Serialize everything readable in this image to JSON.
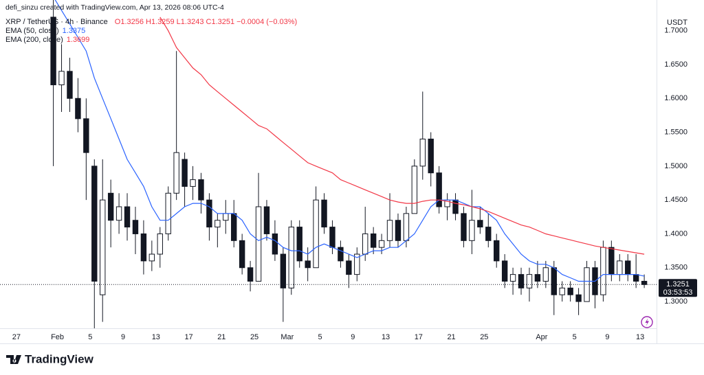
{
  "chart_data": {
    "type": "candlestick",
    "attribution": "defi_sinzu created with TradingView.com, Apr 13, 2026 08:06 UTC-4",
    "symbol": "XRP / TetherUS · 4h · Binance",
    "ohlc_readout": "O1.3256  H1.3259  L1.3243  C1.3251  −0.0004 (−0.03%)",
    "currency": "USDT",
    "countdown": "03:53:53",
    "brand": "TradingView",
    "up_color": "#ffffff",
    "down_color": "#131722",
    "wick_color": "#131722",
    "x": [
      "2026-01-31",
      "2026-02-01",
      "2026-02-02",
      "2026-02-03",
      "2026-02-04",
      "2026-02-05",
      "2026-02-06",
      "2026-02-07",
      "2026-02-08",
      "2026-02-09",
      "2026-02-10",
      "2026-02-11",
      "2026-02-12",
      "2026-02-13",
      "2026-02-14",
      "2026-02-15",
      "2026-02-16",
      "2026-02-17",
      "2026-02-18",
      "2026-02-19",
      "2026-02-20",
      "2026-02-21",
      "2026-02-22",
      "2026-02-23",
      "2026-02-24",
      "2026-02-25",
      "2026-02-26",
      "2026-02-27",
      "2026-02-28",
      "2026-03-01",
      "2026-03-02",
      "2026-03-03",
      "2026-03-04",
      "2026-03-05",
      "2026-03-06",
      "2026-03-07",
      "2026-03-08",
      "2026-03-09",
      "2026-03-10",
      "2026-03-11",
      "2026-03-12",
      "2026-03-13",
      "2026-03-14",
      "2026-03-15",
      "2026-03-16",
      "2026-03-17",
      "2026-03-18",
      "2026-03-19",
      "2026-03-20",
      "2026-03-21",
      "2026-03-22",
      "2026-03-23",
      "2026-03-24",
      "2026-03-25",
      "2026-03-26",
      "2026-03-27",
      "2026-03-28",
      "2026-03-29",
      "2026-03-30",
      "2026-03-31",
      "2026-04-01",
      "2026-04-02",
      "2026-04-03",
      "2026-04-04",
      "2026-04-05",
      "2026-04-06",
      "2026-04-07",
      "2026-04-08",
      "2026-04-09",
      "2026-04-10",
      "2026-04-11",
      "2026-04-12",
      "2026-04-13"
    ],
    "open": [
      1.72,
      1.62,
      1.64,
      1.6,
      1.57,
      1.5,
      1.31,
      1.46,
      1.42,
      1.44,
      1.42,
      1.4,
      1.36,
      1.37,
      1.4,
      1.46,
      1.51,
      1.47,
      1.48,
      1.45,
      1.41,
      1.42,
      1.43,
      1.39,
      1.35,
      1.33,
      1.44,
      1.4,
      1.37,
      1.32,
      1.41,
      1.36,
      1.35,
      1.45,
      1.41,
      1.38,
      1.36,
      1.34,
      1.37,
      1.4,
      1.38,
      1.39,
      1.42,
      1.39,
      1.43,
      1.5,
      1.54,
      1.49,
      1.44,
      1.45,
      1.43,
      1.39,
      1.42,
      1.41,
      1.39,
      1.36,
      1.33,
      1.34,
      1.32,
      1.34,
      1.33,
      1.35,
      1.31,
      1.32,
      1.31,
      1.3,
      1.35,
      1.31,
      1.38,
      1.34,
      1.36,
      1.34,
      1.33
    ],
    "high": [
      1.76,
      1.68,
      1.66,
      1.63,
      1.6,
      1.51,
      1.51,
      1.48,
      1.46,
      1.46,
      1.44,
      1.42,
      1.39,
      1.41,
      1.47,
      1.67,
      1.52,
      1.5,
      1.49,
      1.46,
      1.43,
      1.45,
      1.45,
      1.4,
      1.36,
      1.49,
      1.45,
      1.42,
      1.38,
      1.42,
      1.42,
      1.38,
      1.47,
      1.46,
      1.42,
      1.39,
      1.37,
      1.38,
      1.44,
      1.41,
      1.4,
      1.46,
      1.43,
      1.44,
      1.51,
      1.61,
      1.55,
      1.5,
      1.46,
      1.46,
      1.44,
      1.465,
      1.44,
      1.43,
      1.4,
      1.37,
      1.35,
      1.35,
      1.35,
      1.36,
      1.36,
      1.36,
      1.33,
      1.33,
      1.32,
      1.36,
      1.36,
      1.39,
      1.39,
      1.37,
      1.37,
      1.37,
      1.34
    ],
    "low": [
      1.5,
      1.58,
      1.58,
      1.55,
      1.45,
      1.26,
      1.27,
      1.38,
      1.4,
      1.39,
      1.37,
      1.34,
      1.345,
      1.35,
      1.39,
      1.45,
      1.44,
      1.45,
      1.43,
      1.39,
      1.38,
      1.4,
      1.38,
      1.34,
      1.315,
      1.33,
      1.39,
      1.36,
      1.27,
      1.31,
      1.35,
      1.33,
      1.35,
      1.4,
      1.37,
      1.35,
      1.32,
      1.33,
      1.36,
      1.37,
      1.37,
      1.38,
      1.38,
      1.38,
      1.43,
      1.48,
      1.47,
      1.43,
      1.42,
      1.42,
      1.38,
      1.37,
      1.4,
      1.38,
      1.35,
      1.32,
      1.31,
      1.31,
      1.3,
      1.32,
      1.32,
      1.28,
      1.3,
      1.3,
      1.28,
      1.3,
      1.29,
      1.3,
      1.33,
      1.33,
      1.33,
      1.32,
      1.32
    ],
    "close": [
      1.62,
      1.64,
      1.6,
      1.57,
      1.52,
      1.33,
      1.45,
      1.42,
      1.44,
      1.41,
      1.4,
      1.36,
      1.37,
      1.4,
      1.46,
      1.52,
      1.47,
      1.48,
      1.45,
      1.41,
      1.42,
      1.43,
      1.39,
      1.35,
      1.33,
      1.44,
      1.4,
      1.37,
      1.32,
      1.41,
      1.36,
      1.35,
      1.45,
      1.41,
      1.38,
      1.36,
      1.34,
      1.37,
      1.4,
      1.38,
      1.39,
      1.42,
      1.39,
      1.43,
      1.5,
      1.54,
      1.49,
      1.44,
      1.45,
      1.43,
      1.39,
      1.42,
      1.41,
      1.39,
      1.36,
      1.33,
      1.34,
      1.32,
      1.34,
      1.33,
      1.35,
      1.31,
      1.32,
      1.31,
      1.3,
      1.35,
      1.31,
      1.38,
      1.34,
      1.36,
      1.34,
      1.33,
      1.3251
    ],
    "series": [
      {
        "name": "EMA (50, close)",
        "color": "#2962ff",
        "values": [
          1.75,
          1.73,
          1.71,
          1.69,
          1.67,
          1.63,
          1.6,
          1.57,
          1.54,
          1.51,
          1.49,
          1.47,
          1.44,
          1.42,
          1.42,
          1.43,
          1.44,
          1.445,
          1.445,
          1.44,
          1.43,
          1.43,
          1.43,
          1.42,
          1.4,
          1.39,
          1.395,
          1.39,
          1.38,
          1.375,
          1.375,
          1.37,
          1.38,
          1.385,
          1.38,
          1.375,
          1.37,
          1.365,
          1.37,
          1.375,
          1.375,
          1.38,
          1.38,
          1.39,
          1.4,
          1.42,
          1.44,
          1.45,
          1.45,
          1.45,
          1.445,
          1.44,
          1.44,
          1.43,
          1.42,
          1.4,
          1.385,
          1.37,
          1.36,
          1.355,
          1.355,
          1.35,
          1.34,
          1.335,
          1.33,
          1.33,
          1.33,
          1.34,
          1.34,
          1.34,
          1.34,
          1.34,
          1.3375
        ]
      },
      {
        "name": "EMA (200, close)",
        "color": "#f23645",
        "values": [
          null,
          null,
          null,
          null,
          null,
          null,
          null,
          null,
          null,
          null,
          null,
          null,
          null,
          1.72,
          1.7,
          1.675,
          1.66,
          1.645,
          1.635,
          1.62,
          1.61,
          1.6,
          1.59,
          1.58,
          1.57,
          1.56,
          1.555,
          1.545,
          1.535,
          1.525,
          1.515,
          1.505,
          1.5,
          1.495,
          1.49,
          1.48,
          1.475,
          1.47,
          1.465,
          1.46,
          1.455,
          1.45,
          1.447,
          1.445,
          1.445,
          1.448,
          1.45,
          1.45,
          1.448,
          1.445,
          1.443,
          1.44,
          1.437,
          1.433,
          1.428,
          1.423,
          1.418,
          1.413,
          1.41,
          1.405,
          1.4,
          1.397,
          1.394,
          1.391,
          1.388,
          1.385,
          1.382,
          1.38,
          1.378,
          1.376,
          1.374,
          1.372,
          1.3699
        ]
      }
    ],
    "xlim": [
      "2026-01-25",
      "2026-04-15"
    ],
    "xticks": [
      {
        "value": "2026-01-27",
        "label": "27"
      },
      {
        "value": "2026-02-01",
        "label": "Feb"
      },
      {
        "value": "2026-02-05",
        "label": "5"
      },
      {
        "value": "2026-02-09",
        "label": "9"
      },
      {
        "value": "2026-02-13",
        "label": "13"
      },
      {
        "value": "2026-02-17",
        "label": "17"
      },
      {
        "value": "2026-02-21",
        "label": "21"
      },
      {
        "value": "2026-02-25",
        "label": "25"
      },
      {
        "value": "2026-03-01",
        "label": "Mar"
      },
      {
        "value": "2026-03-05",
        "label": "5"
      },
      {
        "value": "2026-03-09",
        "label": "9"
      },
      {
        "value": "2026-03-13",
        "label": "13"
      },
      {
        "value": "2026-03-17",
        "label": "17"
      },
      {
        "value": "2026-03-21",
        "label": "21"
      },
      {
        "value": "2026-03-25",
        "label": "25"
      },
      {
        "value": "2026-04-01",
        "label": "Apr"
      },
      {
        "value": "2026-04-05",
        "label": "5"
      },
      {
        "value": "2026-04-09",
        "label": "9"
      },
      {
        "value": "2026-04-13",
        "label": "13"
      }
    ],
    "ylim": [
      1.2605,
      1.7453
    ],
    "yticks": [
      {
        "value": 1.3,
        "label": "1.3000"
      },
      {
        "value": 1.35,
        "label": "1.3500"
      },
      {
        "value": 1.4,
        "label": "1.4000"
      },
      {
        "value": 1.45,
        "label": "1.4500"
      },
      {
        "value": 1.5,
        "label": "1.5000"
      },
      {
        "value": 1.55,
        "label": "1.5500"
      },
      {
        "value": 1.6,
        "label": "1.6000"
      },
      {
        "value": 1.65,
        "label": "1.6500"
      },
      {
        "value": 1.7,
        "label": "1.7000"
      }
    ],
    "grid": false
  }
}
